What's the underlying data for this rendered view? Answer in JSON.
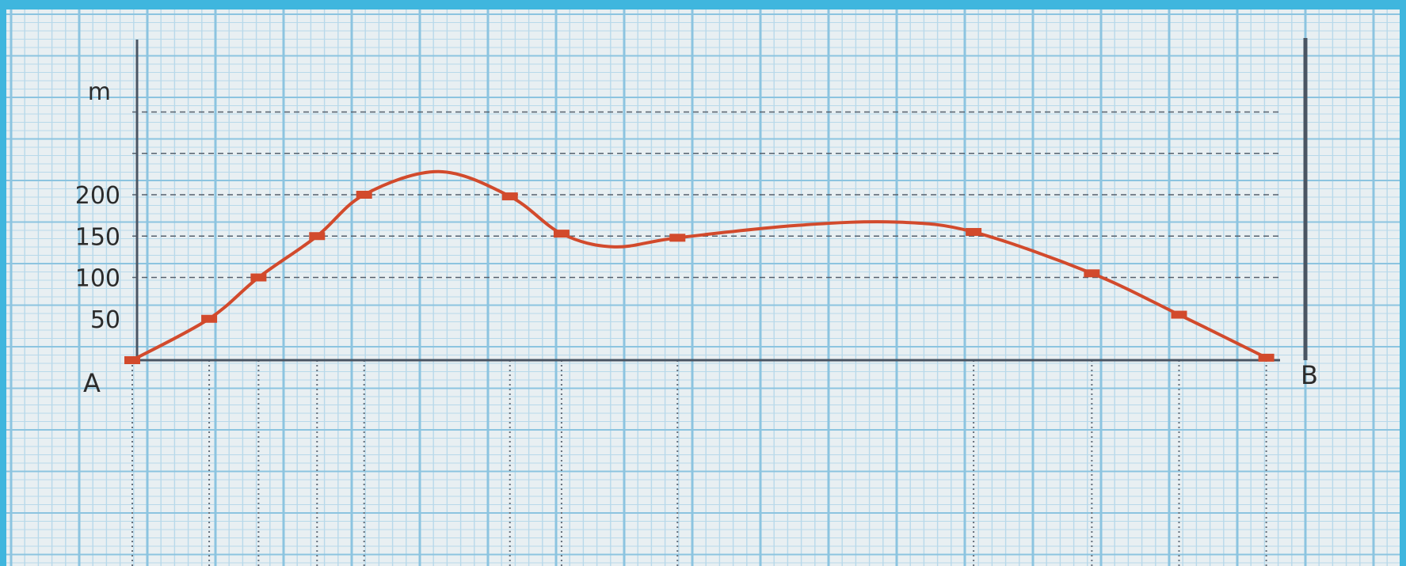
{
  "colors": {
    "frame": "#3fb6de",
    "paper": "#e8eff2",
    "grid_fine": "#b8d9ea",
    "grid_major": "#8cc4e0",
    "axis": "#4a5563",
    "curve": "#d24a2c",
    "marker": "#d24a2c"
  },
  "chart_data": {
    "type": "line",
    "title": "",
    "xlabel": "",
    "ylabel": "m",
    "start_label": "A",
    "end_label": "B",
    "ylim": [
      0,
      300
    ],
    "xlim": [
      0,
      1000
    ],
    "y_ticks": [
      50,
      100,
      150,
      200
    ],
    "y_tick_labels": [
      "50",
      "100",
      "150",
      "200"
    ],
    "dashed_y": [
      100,
      150,
      200,
      250,
      300
    ],
    "grid": true,
    "legend": "none",
    "series": [
      {
        "markers": [
          [
            0,
            0
          ],
          [
            67,
            50
          ],
          [
            110,
            100
          ],
          [
            161,
            150
          ],
          [
            202,
            200
          ],
          [
            329,
            198
          ],
          [
            374,
            153
          ],
          [
            475,
            148
          ],
          [
            733,
            155
          ],
          [
            836,
            105
          ],
          [
            912,
            55
          ],
          [
            988,
            3
          ]
        ],
        "curve": [
          [
            0,
            0
          ],
          [
            67,
            50
          ],
          [
            110,
            100
          ],
          [
            161,
            150
          ],
          [
            202,
            200
          ],
          [
            267,
            228
          ],
          [
            329,
            198
          ],
          [
            374,
            153
          ],
          [
            420,
            137
          ],
          [
            475,
            148
          ],
          [
            580,
            163
          ],
          [
            665,
            167
          ],
          [
            733,
            155
          ],
          [
            836,
            105
          ],
          [
            912,
            55
          ],
          [
            988,
            3
          ]
        ]
      }
    ]
  }
}
